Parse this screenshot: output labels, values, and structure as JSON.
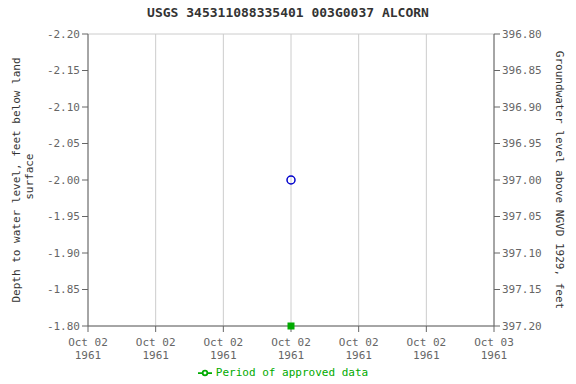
{
  "chart_data": {
    "type": "scatter",
    "title": "USGS 345311088335401 003G0037  ALCORN",
    "y_label": "Depth to water level, feet below land\n surface",
    "y2_label": "Groundwater level above NGVD 1929, feet",
    "categories": [
      "Oct 02\n1961",
      "Oct 02\n1961",
      "Oct 02\n1961",
      "Oct 02\n1961",
      "Oct 02\n1961",
      "Oct 02\n1961",
      "Oct 03\n1961"
    ],
    "series": [
      {
        "values": [
          null,
          null,
          null,
          -2.0,
          null,
          null,
          null
        ],
        "color": "#0000cc",
        "marker": "circle"
      },
      {
        "name": "Period of approved data",
        "values": [
          null,
          null,
          null,
          -1.8,
          null,
          null,
          null
        ],
        "color": "#00aa00",
        "marker": "square"
      }
    ],
    "ylim": [
      -1.8,
      -2.2
    ],
    "yticks": [
      {
        "value": -2.2,
        "label": "-2.20"
      },
      -2.15,
      {
        "value": -2.1,
        "label": "-2.10"
      },
      -2.05,
      {
        "value": -2.0,
        "label": "-2.00"
      },
      -1.95,
      {
        "value": -1.9,
        "label": "-1.90"
      },
      -1.85,
      {
        "value": -1.8,
        "label": "-1.80"
      }
    ],
    "y2lim": [
      397.2,
      396.8
    ],
    "y2ticks": [
      {
        "value": 396.8,
        "label": "396.80"
      },
      396.85,
      {
        "value": 396.9,
        "label": "396.90"
      },
      396.95,
      {
        "value": 397.0,
        "label": "397.00"
      },
      397.05,
      {
        "value": 397.1,
        "label": "397.10"
      },
      397.15,
      {
        "value": 397.2,
        "label": "397.20"
      }
    ],
    "grid": true,
    "legend": "bottom"
  }
}
